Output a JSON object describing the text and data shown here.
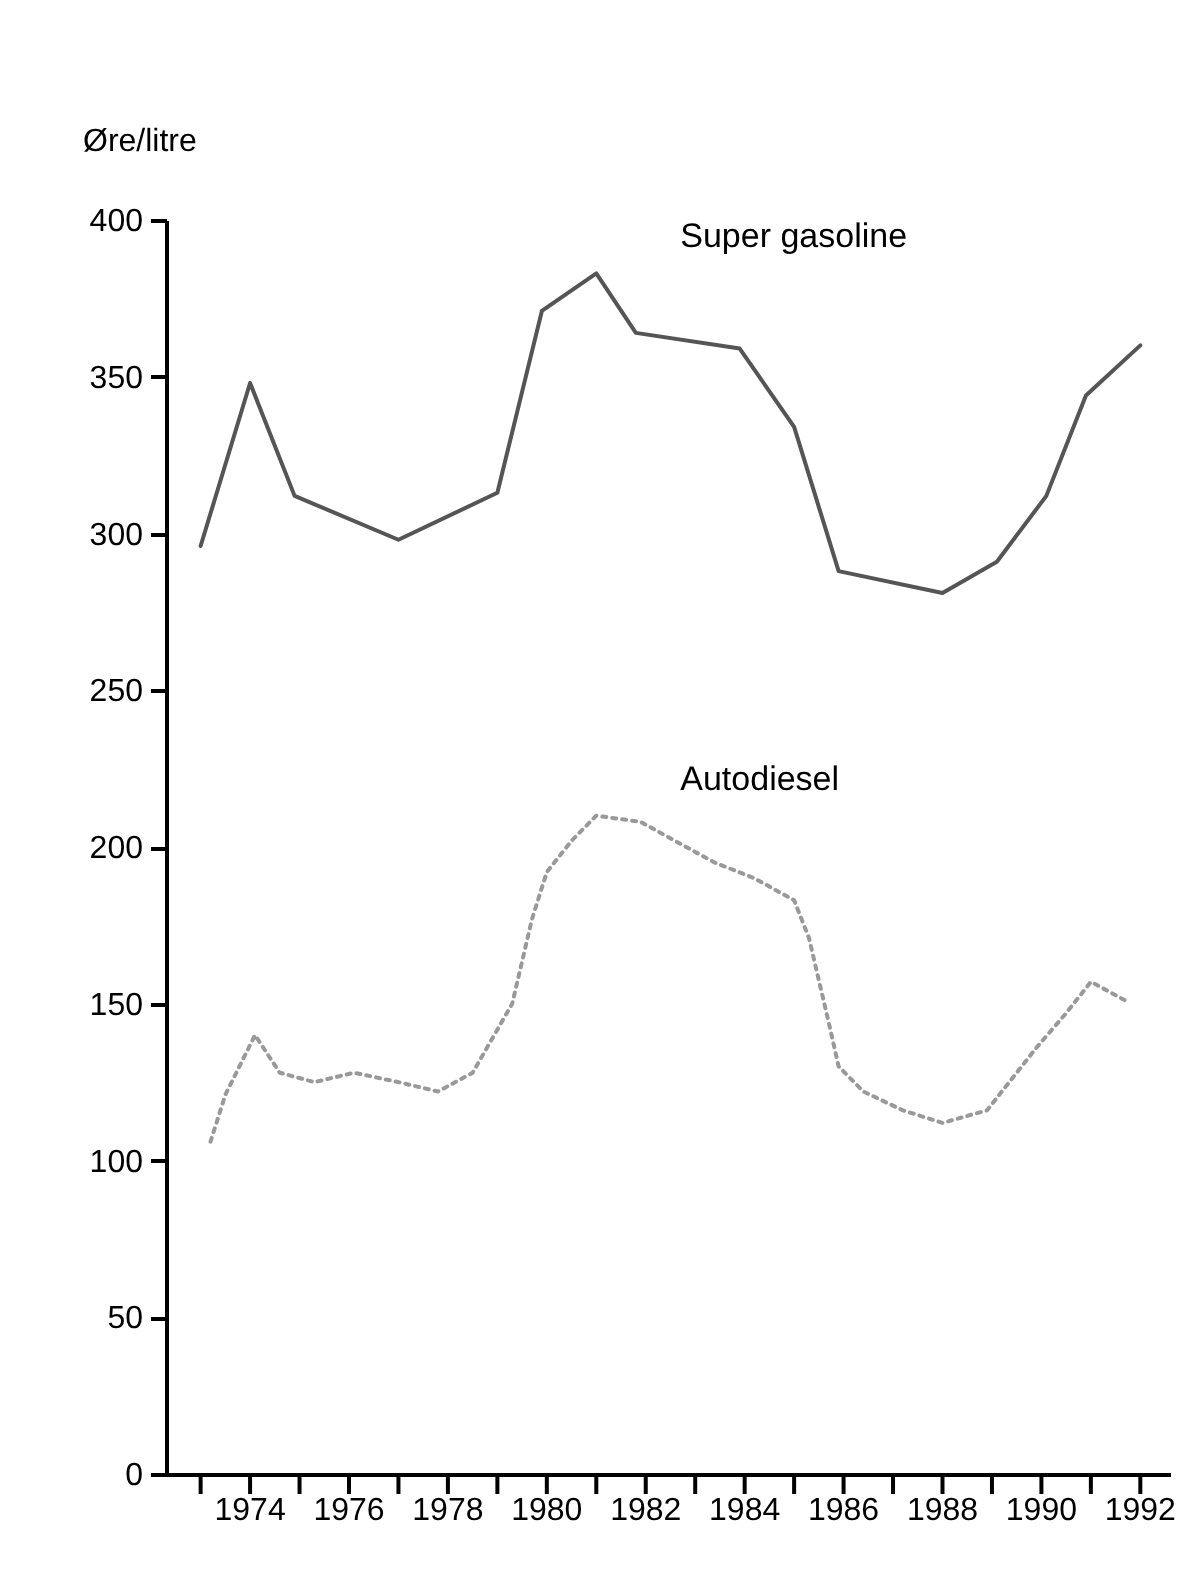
{
  "chart_data": {
    "type": "line",
    "ylabel": "Øre/litre",
    "xlim": [
      1972.3,
      1992.6
    ],
    "ylim": [
      0,
      400
    ],
    "xticks": [
      {
        "value": 1973,
        "label": null
      },
      1974,
      {
        "value": 1975,
        "label": null
      },
      1976,
      {
        "value": 1977,
        "label": null
      },
      1978,
      {
        "value": 1979,
        "label": null
      },
      1980,
      {
        "value": 1981,
        "label": null
      },
      1982,
      {
        "value": 1983,
        "label": null
      },
      1984,
      {
        "value": 1985,
        "label": null
      },
      1986,
      {
        "value": 1987,
        "label": null
      },
      1988,
      {
        "value": 1989,
        "label": null
      },
      1990,
      {
        "value": 1991,
        "label": null
      },
      1992
    ],
    "yticks": [
      0,
      50,
      100,
      150,
      200,
      250,
      300,
      350,
      400
    ],
    "grid": false,
    "series": [
      {
        "name": "Super gasoline",
        "color": "#555555",
        "line_style": "solid",
        "x": [
          1973,
          1974,
          1974.9,
          1977,
          1979,
          1979.9,
          1981,
          1981.8,
          1983.9,
          1985,
          1985.9,
          1988,
          1989.1,
          1990.1,
          1990.9,
          1992
        ],
        "values": [
          296,
          348,
          312,
          298,
          313,
          371,
          383,
          364,
          359,
          334,
          288,
          281,
          291,
          312,
          344,
          360
        ]
      },
      {
        "name": "Autodiesel",
        "color": "#999999",
        "line_style": "dotted",
        "x": [
          1973.2,
          1973.5,
          1974.1,
          1974.6,
          1975.3,
          1976.1,
          1977,
          1977.8,
          1978.5,
          1979.3,
          1979.7,
          1980,
          1980.5,
          1981,
          1981.9,
          1982.7,
          1983.4,
          1984.2,
          1985,
          1985.3,
          1985.7,
          1985.9,
          1986.4,
          1987.2,
          1988,
          1988.9,
          1989.4,
          1989.9,
          1990.5,
          1991,
          1991.7
        ],
        "values": [
          106,
          121,
          140,
          128,
          125,
          128,
          125,
          122,
          128,
          150,
          177,
          192,
          202,
          210,
          208,
          201,
          195,
          190,
          183,
          171,
          144,
          130,
          122,
          116,
          112,
          116,
          126,
          136,
          147,
          157,
          151
        ]
      }
    ]
  }
}
